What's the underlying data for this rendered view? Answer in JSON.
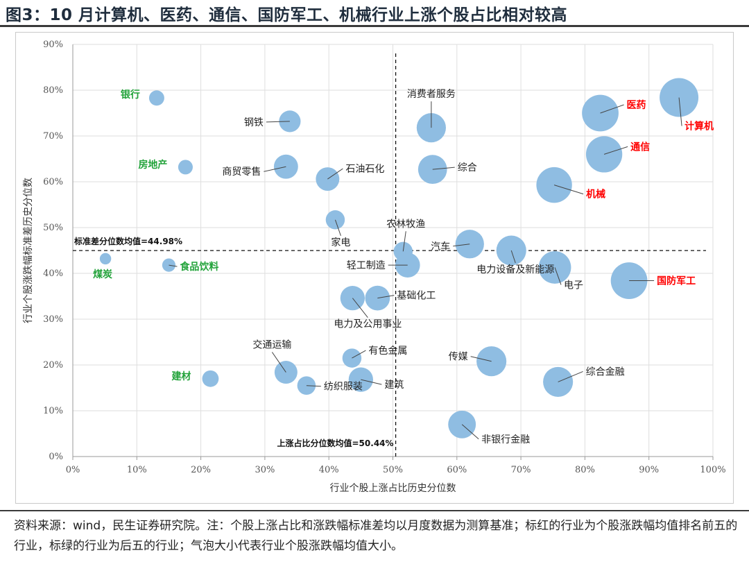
{
  "title": "图3：10 月计算机、医药、通信、国防军工、机械行业上涨个股占比相对较高",
  "source_note": "资料来源：wind，民生证券研究院。注：个股上涨占比和涨跌幅标准差均以月度数据为测算基准；标红的行业为个股涨跌幅均值排名前五的行业，标绿的行业为后五的行业；气泡大小代表行业个股涨跌幅均值大小。",
  "chart_data": {
    "type": "scatter",
    "subtype": "bubble",
    "xlabel": "行业个股上涨占比历史分位数",
    "ylabel": "行业个股涨跌幅标准差历史分位数",
    "xlim": [
      0,
      100
    ],
    "ylim": [
      0,
      90
    ],
    "x_ticks": [
      "0%",
      "10%",
      "20%",
      "30%",
      "40%",
      "50%",
      "60%",
      "70%",
      "80%",
      "90%",
      "100%"
    ],
    "y_ticks": [
      "0%",
      "10%",
      "20%",
      "30%",
      "40%",
      "50%",
      "60%",
      "70%",
      "80%",
      "90%"
    ],
    "ref_lines": {
      "x_value": 50.44,
      "x_label": "上涨占比分位数均值=50.44%",
      "y_value": 44.98,
      "y_label": "标准差分位数均值=44.98%"
    },
    "colors": {
      "bubble": "#8fbde2",
      "top5": "#ff0000",
      "bottom5": "#22a33a",
      "normal": "#222222"
    },
    "points": [
      {
        "name": "计算机",
        "x": 94.7,
        "y": 78.4,
        "size": 1.0,
        "group": "top5"
      },
      {
        "name": "医药",
        "x": 82.4,
        "y": 75.0,
        "size": 0.93,
        "group": "top5"
      },
      {
        "name": "通信",
        "x": 83.0,
        "y": 66.0,
        "size": 0.92,
        "group": "top5"
      },
      {
        "name": "机械",
        "x": 75.2,
        "y": 59.3,
        "size": 0.9,
        "group": "top5"
      },
      {
        "name": "国防军工",
        "x": 86.9,
        "y": 38.4,
        "size": 0.93,
        "group": "top5"
      },
      {
        "name": "银行",
        "x": 13.1,
        "y": 78.3,
        "size": 0.26,
        "group": "bottom5"
      },
      {
        "name": "房地产",
        "x": 17.6,
        "y": 63.2,
        "size": 0.24,
        "group": "bottom5"
      },
      {
        "name": "煤炭",
        "x": 5.1,
        "y": 43.2,
        "size": 0.14,
        "group": "bottom5"
      },
      {
        "name": "食品饮料",
        "x": 15.0,
        "y": 41.8,
        "size": 0.2,
        "group": "bottom5"
      },
      {
        "name": "建材",
        "x": 21.5,
        "y": 17.0,
        "size": 0.3,
        "group": "bottom5"
      },
      {
        "name": "消费者服务",
        "x": 56.0,
        "y": 71.8,
        "size": 0.7,
        "group": "normal"
      },
      {
        "name": "钢铁",
        "x": 33.9,
        "y": 73.2,
        "size": 0.46,
        "group": "normal"
      },
      {
        "name": "商贸零售",
        "x": 33.3,
        "y": 63.3,
        "size": 0.54,
        "group": "normal"
      },
      {
        "name": "石油石化",
        "x": 39.8,
        "y": 60.6,
        "size": 0.52,
        "group": "normal"
      },
      {
        "name": "综合",
        "x": 56.2,
        "y": 62.7,
        "size": 0.69,
        "group": "normal"
      },
      {
        "name": "家电",
        "x": 41.0,
        "y": 51.7,
        "size": 0.38,
        "group": "normal"
      },
      {
        "name": "农林牧渔",
        "x": 51.6,
        "y": 44.8,
        "size": 0.38,
        "group": "normal"
      },
      {
        "name": "汽车",
        "x": 62.0,
        "y": 46.4,
        "size": 0.68,
        "group": "normal"
      },
      {
        "name": "电力设备及新能源",
        "x": 68.5,
        "y": 45.0,
        "size": 0.72,
        "group": "normal"
      },
      {
        "name": "轻工制造",
        "x": 52.3,
        "y": 41.8,
        "size": 0.56,
        "group": "normal"
      },
      {
        "name": "电子",
        "x": 75.3,
        "y": 41.3,
        "size": 0.8,
        "group": "normal"
      },
      {
        "name": "电力及公用事业",
        "x": 43.7,
        "y": 34.6,
        "size": 0.55,
        "group": "normal"
      },
      {
        "name": "基础化工",
        "x": 47.6,
        "y": 34.6,
        "size": 0.56,
        "group": "normal"
      },
      {
        "name": "交通运输",
        "x": 33.3,
        "y": 18.4,
        "size": 0.5,
        "group": "normal"
      },
      {
        "name": "有色金属",
        "x": 43.6,
        "y": 21.5,
        "size": 0.38,
        "group": "normal"
      },
      {
        "name": "纺织服装",
        "x": 36.5,
        "y": 15.5,
        "size": 0.36,
        "group": "normal"
      },
      {
        "name": "建筑",
        "x": 45.0,
        "y": 16.8,
        "size": 0.55,
        "group": "normal"
      },
      {
        "name": "传媒",
        "x": 65.4,
        "y": 20.8,
        "size": 0.72,
        "group": "normal"
      },
      {
        "name": "综合金融",
        "x": 75.8,
        "y": 16.3,
        "size": 0.72,
        "group": "normal"
      },
      {
        "name": "非银行金融",
        "x": 60.8,
        "y": 7.0,
        "size": 0.65,
        "group": "normal"
      }
    ]
  }
}
